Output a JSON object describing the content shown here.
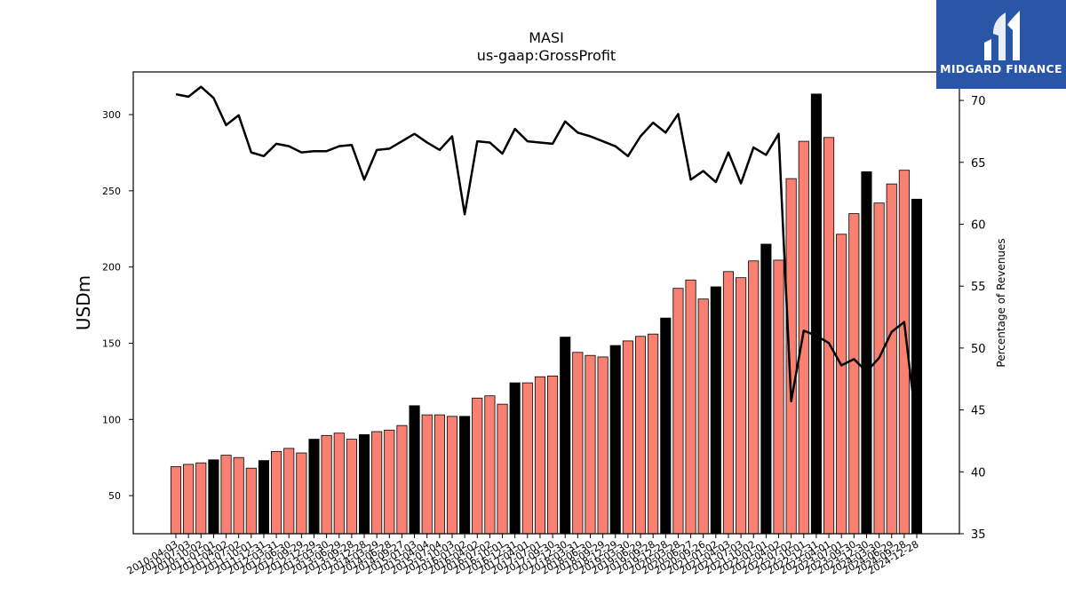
{
  "brand": {
    "name": "MIDGARD FINANCE",
    "bg": "#2a56a8"
  },
  "chart_data": {
    "type": "bar",
    "title": "MASI",
    "subtitle": "us-gaap:GrossProfit",
    "ylabel": "USDm",
    "y2label": "Percentage of Revenues",
    "ylim": [
      25,
      328
    ],
    "y2lim": [
      35,
      72.3
    ],
    "yticks": [
      50,
      100,
      150,
      200,
      250,
      300
    ],
    "y2ticks": [
      35,
      40,
      45,
      50,
      55,
      60,
      65,
      70
    ],
    "colors": {
      "quarter": "#fa8072",
      "annual": "#000000",
      "line": "#000000"
    },
    "categories": [
      "2010-04-03",
      "2010-07-03",
      "2010-10-02",
      "2011-01-01",
      "2011-04-02",
      "2011-07-02",
      "2011-10-01",
      "2011-12-31",
      "2012-03-31",
      "2012-06-30",
      "2012-09-29",
      "2012-12-29",
      "2013-03-30",
      "2013-06-29",
      "2013-09-28",
      "2013-12-28",
      "2014-03-29",
      "2014-06-28",
      "2014-09-27",
      "2015-01-03",
      "2015-04-04",
      "2015-07-04",
      "2015-10-03",
      "2016-01-02",
      "2016-04-02",
      "2016-07-02",
      "2016-10-01",
      "2016-12-31",
      "2017-04-01",
      "2017-07-01",
      "2017-09-30",
      "2017-12-30",
      "2018-03-31",
      "2018-06-30",
      "2018-09-29",
      "2018-12-29",
      "2019-03-30",
      "2019-06-29",
      "2019-09-28",
      "2019-12-28",
      "2020-03-28",
      "2020-06-27",
      "2020-09-26",
      "2021-01-02",
      "2021-04-03",
      "2021-07-03",
      "2021-10-02",
      "2022-01-01",
      "2022-04-02",
      "2022-07-02",
      "2022-10-01",
      "2022-12-31",
      "2023-04-01",
      "2023-07-01",
      "2023-09-30",
      "2023-12-30",
      "2024-03-30",
      "2024-06-29",
      "2024-09-28",
      "2024-12-28"
    ],
    "x_tick_labels": [
      "2010-04-03",
      "2010-07-03",
      "2010-10-02",
      "2011-01-01",
      "2011-04-02",
      "2011-07-02",
      "2011-10-01",
      "2011-12-31",
      "2012-03-31",
      "2012-06-30",
      "2012-09-29",
      "2012-12-29",
      "2013-03-30",
      "2013-06-29",
      "2013-09-28",
      "2013-12-28",
      "2014-03-29",
      "2014-06-28",
      "2014-09-27",
      "2015-01-03",
      "2015-04-04",
      "2015-07-04",
      "2015-10-03",
      "2016-01-02",
      "2016-04-02",
      "2016-07-02",
      "2016-10-01",
      "2016-12-31",
      "2017-04-01",
      "2017-07-01",
      "2017-09-30",
      "2017-12-30",
      "2018-03-31",
      "2018-06-30",
      "2018-09-29",
      "2018-12-29",
      "2019-03-30",
      "2019-06-29",
      "2019-09-28",
      "2019-12-28",
      "2020-03-28",
      "2020-06-27",
      "2020-09-26",
      "2021-01-02",
      "2021-04-03",
      "2021-07-03",
      "2021-10-02",
      "2022-01-01",
      "2022-04-02",
      "2022-07-02",
      "2022-10-01",
      "2022-12-31",
      "2023-04-01",
      "2023-07-01",
      "2023-09-30",
      "2023-12-30",
      "2024-03-30",
      "2024-06-29",
      "2024-09-28",
      "2024-12-28"
    ],
    "values": [
      69,
      70.5,
      71.5,
      73.5,
      76.5,
      75,
      68,
      73,
      79,
      81,
      78,
      87,
      89.5,
      91,
      87,
      90,
      92,
      93,
      96,
      109,
      103,
      103,
      102,
      102,
      114,
      115.5,
      110,
      124,
      124,
      128,
      128.5,
      154,
      144,
      142,
      141,
      148.5,
      151.5,
      154.5,
      156,
      166.5,
      186,
      191.5,
      179,
      187,
      197,
      193,
      204,
      215,
      204.5,
      258,
      282.5,
      313.5,
      285,
      221.5,
      235,
      262.5,
      242,
      254.5,
      263.5,
      244.5
    ],
    "annual": [
      false,
      false,
      false,
      true,
      false,
      false,
      false,
      true,
      false,
      false,
      false,
      true,
      false,
      false,
      false,
      true,
      false,
      false,
      false,
      true,
      false,
      false,
      false,
      true,
      false,
      false,
      false,
      true,
      false,
      false,
      false,
      true,
      false,
      false,
      false,
      true,
      false,
      false,
      false,
      true,
      false,
      false,
      false,
      true,
      false,
      false,
      false,
      true,
      false,
      false,
      false,
      true,
      false,
      false,
      false,
      true,
      false,
      false,
      false,
      true
    ],
    "margin_pct": [
      70.5,
      70.3,
      71.1,
      70.2,
      68.0,
      68.8,
      65.8,
      65.5,
      66.5,
      66.3,
      65.8,
      65.9,
      65.9,
      66.3,
      66.4,
      63.6,
      66.0,
      66.1,
      66.7,
      67.3,
      66.6,
      66.0,
      67.1,
      60.8,
      66.7,
      66.6,
      65.7,
      67.7,
      66.7,
      66.6,
      66.5,
      68.3,
      67.4,
      67.1,
      66.7,
      66.3,
      65.5,
      67.1,
      68.2,
      67.4,
      68.9,
      63.6,
      64.3,
      63.4,
      65.8,
      63.3,
      66.2,
      65.6,
      67.3,
      45.7,
      51.4,
      51.0,
      50.4,
      48.6,
      49.1,
      48.1,
      49.2,
      51.3,
      52.1,
      43.5
    ]
  }
}
